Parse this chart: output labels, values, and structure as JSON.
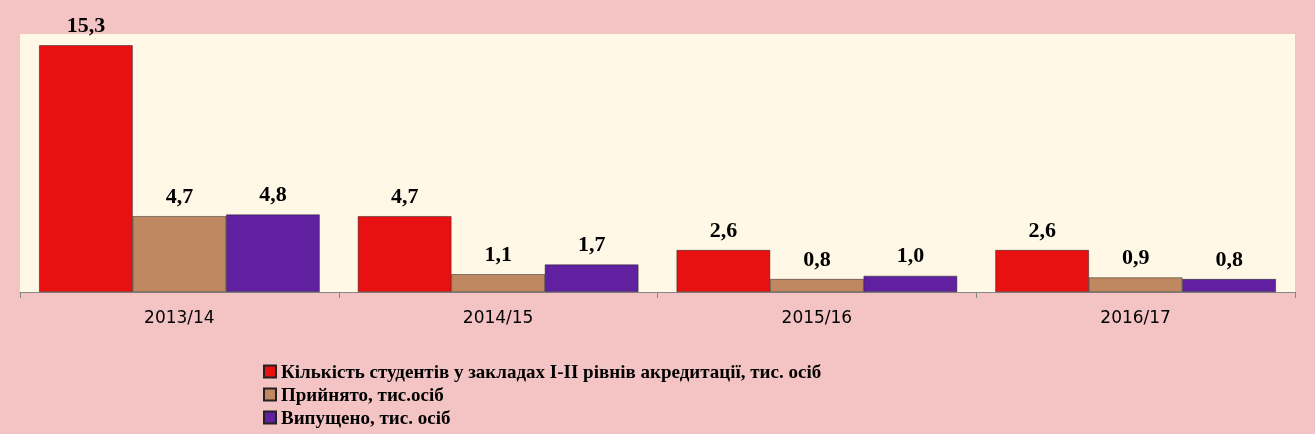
{
  "chart_data": {
    "type": "bar",
    "categories": [
      "2013/14",
      "2014/15",
      "2015/16",
      "2016/17"
    ],
    "series": [
      {
        "name": "Кількість студентів у закладах І-ІІ рівнів акредитації, тис. осіб",
        "color": "#e81010",
        "values": [
          15.3,
          4.7,
          2.6,
          2.6
        ],
        "value_labels": [
          "15,3",
          "4,7",
          "2,6",
          "2,6"
        ]
      },
      {
        "name": "Прийнято, тис.осіб",
        "color": "#c08860",
        "values": [
          4.7,
          1.1,
          0.8,
          0.9
        ],
        "value_labels": [
          "4,7",
          "1,1",
          "0,8",
          "0,9"
        ]
      },
      {
        "name": "Випущено, тис. осіб",
        "color": "#6020a0",
        "values": [
          4.8,
          1.7,
          1.0,
          0.8
        ],
        "value_labels": [
          "4,8",
          "1,7",
          "1,0",
          "0,8"
        ]
      }
    ],
    "legend": "bottom"
  }
}
